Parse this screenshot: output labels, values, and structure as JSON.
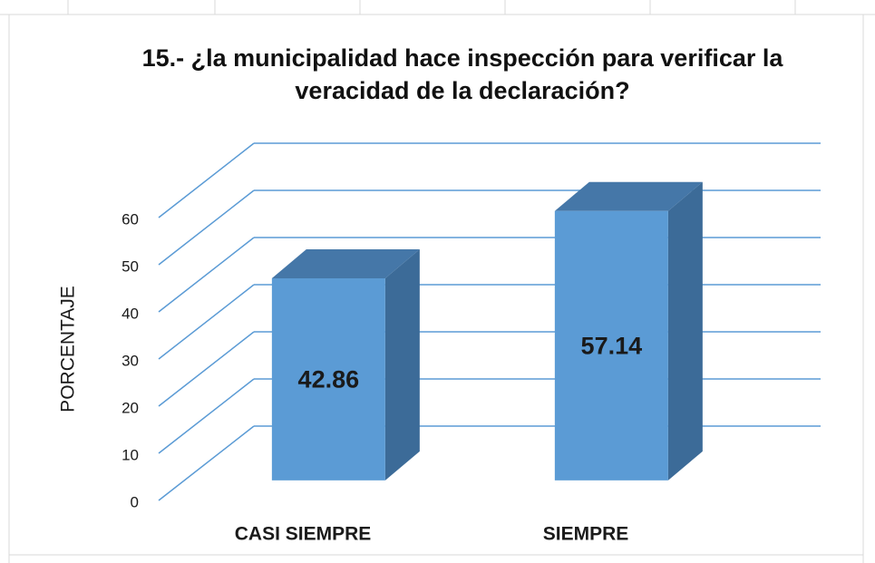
{
  "chart_data": {
    "type": "bar3d",
    "title": "15.- ¿la municipalidad hace inspección para verificar la veracidad de la declaración?",
    "y_label": "PORCENTAJE",
    "categories": [
      "CASI SIEMPRE",
      "SIEMPRE"
    ],
    "values": [
      42.86,
      57.14
    ],
    "color": "#5b9bd5",
    "ylim": [
      0,
      60
    ],
    "yticks": [
      0,
      10,
      20,
      30,
      40,
      50,
      60
    ],
    "grid": true
  }
}
